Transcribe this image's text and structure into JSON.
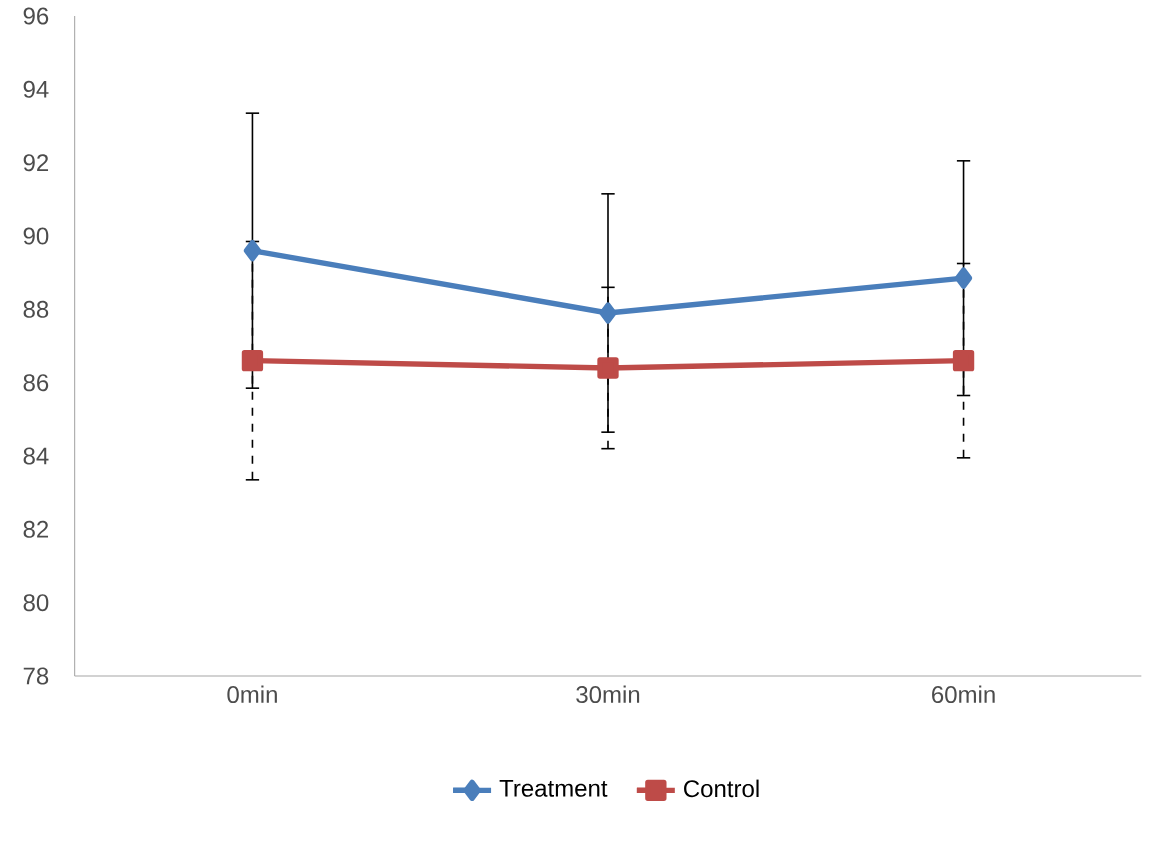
{
  "chart_data": {
    "type": "line",
    "categories": [
      "0min",
      "30min",
      "60min"
    ],
    "series": [
      {
        "name": "Treatment",
        "color": "#4a7ebb",
        "marker": "diamond",
        "values": [
          89.6,
          87.9,
          88.85
        ],
        "errors": [
          3.75,
          3.25,
          3.2
        ]
      },
      {
        "name": "Control",
        "color": "#be4b48",
        "marker": "square",
        "values": [
          86.6,
          86.4,
          86.6
        ],
        "errors": [
          3.25,
          2.2,
          2.65
        ]
      }
    ],
    "ylim": [
      78,
      96
    ],
    "yticks": [
      78,
      80,
      82,
      84,
      86,
      88,
      90,
      92,
      94,
      96
    ],
    "grid": false,
    "legend": "bottom"
  }
}
